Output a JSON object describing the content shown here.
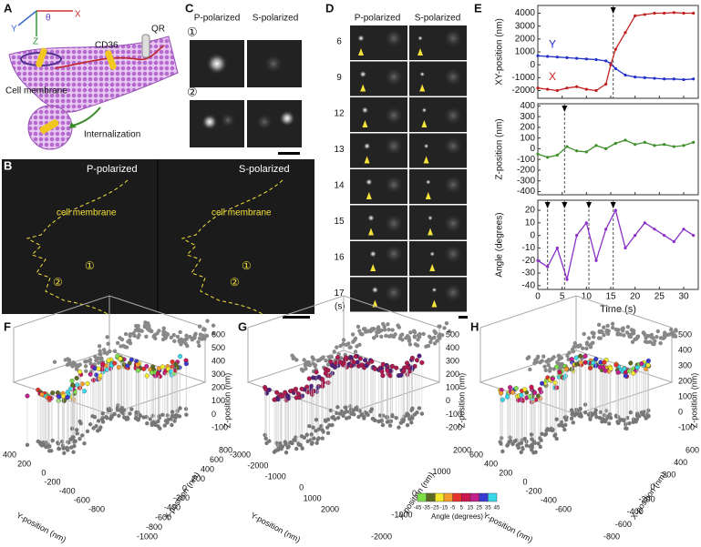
{
  "panels": {
    "A": {
      "label": "A",
      "axis_x": "X",
      "axis_y": "Y",
      "axis_z": "Z",
      "axis_theta": "θ",
      "qr": "QR",
      "cd36": "CD36",
      "membrane": "Cell membrane",
      "internalization": "Internalization"
    },
    "B": {
      "label": "B",
      "p": "P-polarized",
      "s": "S-polarized",
      "membrane_left": "cell membrane",
      "membrane_right": "cell membrane",
      "left_1": "①",
      "left_2": "②",
      "right_1": "①",
      "right_2": "②"
    },
    "C": {
      "label": "C",
      "p": "P-polarized",
      "s": "S-polarized",
      "row_1": "①",
      "row_2": "②"
    },
    "D": {
      "label": "D",
      "p": "P-polarized",
      "s": "S-polarized",
      "times": [
        "6",
        "9",
        "12",
        "13",
        "14",
        "15",
        "16",
        "17"
      ],
      "unit": "(s)"
    },
    "E": {
      "label": "E"
    },
    "F": {
      "label": "F",
      "z_label": "Z-position (nm)",
      "y_label": "Y-position (nm)",
      "x_label": "X-position (nm)",
      "z_ticks": [
        600,
        500,
        400,
        300,
        200,
        100,
        0,
        -100
      ],
      "y_ticks": [
        400,
        200,
        0,
        -200,
        -400,
        -600,
        -800
      ],
      "x_ticks": [
        -1000,
        -800,
        -600,
        -400,
        -200,
        0,
        200,
        400,
        600,
        800
      ]
    },
    "G": {
      "label": "G",
      "z_label": "Z-position (nm)",
      "y_label": "Y-position (nm)",
      "x_label": "X-position (nm)",
      "z_ticks": [
        500,
        400,
        300,
        200,
        100,
        0,
        -100,
        -200
      ],
      "y_ticks": [
        -3000,
        -2000,
        -1000,
        0,
        1000,
        2000
      ],
      "x_ticks": [
        -2000,
        -1000,
        0,
        1000,
        2000
      ]
    },
    "H": {
      "label": "H",
      "z_label": "Z-position (nm)",
      "y_label": "Y-position (nm)",
      "x_label": "X-position (nm)",
      "z_ticks": [
        500,
        400,
        300,
        200,
        100,
        0,
        -100
      ],
      "y_ticks": [
        600,
        400,
        200,
        0,
        -200,
        -400,
        -600
      ],
      "x_ticks": [
        -800,
        -600,
        -400,
        -200,
        0,
        200,
        400,
        600
      ]
    },
    "colorbar": {
      "title": "Angle (degrees)",
      "ticks": [
        -45,
        -35,
        -25,
        -15,
        -5,
        5,
        15,
        25,
        35,
        45
      ],
      "colors": [
        "#7ee04a",
        "#5e6b24",
        "#f2ea2a",
        "#f59a2c",
        "#e5322a",
        "#cc1450",
        "#c21f8c",
        "#3a3ad0",
        "#38d8e8"
      ]
    }
  },
  "chart_data": [
    {
      "type": "line",
      "ylabel": "XY-position (nm)",
      "x": [
        0,
        2,
        4,
        6,
        8,
        10,
        12,
        14,
        15,
        16,
        18,
        20,
        22,
        24,
        26,
        28,
        30,
        32
      ],
      "xlim": [
        0,
        33
      ],
      "xticks": [
        0,
        5,
        10,
        15,
        20,
        25,
        30
      ],
      "ylim": [
        -2600,
        4600
      ],
      "yticks": [
        -2000,
        -1000,
        0,
        1000,
        2000,
        3000,
        4000
      ],
      "series": [
        {
          "name": "Y",
          "color": "#2230c8",
          "values": [
            700,
            650,
            600,
            550,
            500,
            450,
            400,
            300,
            100,
            -300,
            -800,
            -950,
            -1000,
            -1050,
            -1100,
            -1100,
            -1150,
            -1100
          ]
        },
        {
          "name": "X",
          "color": "#c02020",
          "values": [
            -1800,
            -1900,
            -2000,
            -1800,
            -1700,
            -1900,
            -2000,
            -1500,
            0,
            1200,
            2500,
            3800,
            3900,
            4000,
            4000,
            4050,
            4000,
            4000
          ]
        }
      ],
      "events": [
        15.5
      ]
    },
    {
      "type": "line",
      "ylabel": "Z-position (nm)",
      "x": [
        0,
        2,
        4,
        6,
        8,
        10,
        12,
        14,
        16,
        18,
        20,
        22,
        24,
        26,
        28,
        30,
        32
      ],
      "xlim": [
        0,
        33
      ],
      "xticks": [
        0,
        5,
        10,
        15,
        20,
        25,
        30
      ],
      "ylim": [
        -430,
        420
      ],
      "yticks": [
        -400,
        -300,
        -200,
        -100,
        0,
        100,
        200,
        300,
        400
      ],
      "series": [
        {
          "color": "#3f8f2a",
          "values": [
            -50,
            -80,
            -60,
            20,
            -20,
            -30,
            30,
            0,
            50,
            80,
            40,
            60,
            30,
            40,
            20,
            30,
            60
          ]
        }
      ],
      "events": [
        5.5
      ]
    },
    {
      "type": "line",
      "ylabel": "Angle (degrees)",
      "xlabel": "Time (s)",
      "x": [
        0,
        2,
        4,
        6,
        8,
        10,
        12,
        14,
        16,
        18,
        20,
        22,
        24,
        26,
        28,
        30,
        32
      ],
      "xlim": [
        0,
        33
      ],
      "xticks": [
        0,
        5,
        10,
        15,
        20,
        25,
        30
      ],
      "ylim": [
        -43,
        28
      ],
      "yticks": [
        -40,
        -30,
        -20,
        -10,
        0,
        10,
        20
      ],
      "series": [
        {
          "color": "#8a2fc8",
          "values": [
            -20,
            -25,
            -10,
            -35,
            0,
            10,
            -20,
            5,
            20,
            -10,
            0,
            10,
            5,
            0,
            -5,
            5,
            0
          ]
        }
      ],
      "events": [
        2,
        5.5,
        10.5,
        15.5
      ]
    }
  ]
}
